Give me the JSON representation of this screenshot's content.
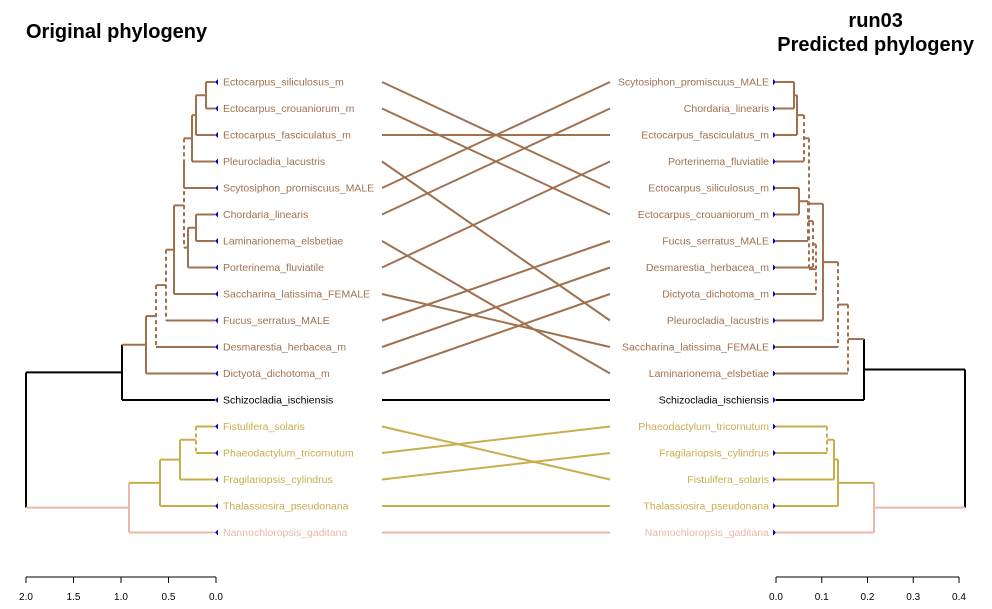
{
  "left_tree": {
    "title": "Original phylogeny",
    "tips": [
      {
        "label": "Ectocarpus_siliculosus_m",
        "group": "brown"
      },
      {
        "label": "Ectocarpus_crouaniorum_m",
        "group": "brown"
      },
      {
        "label": "Ectocarpus_fasciculatus_m",
        "group": "brown"
      },
      {
        "label": "Pleurocladia_lacustris",
        "group": "brown"
      },
      {
        "label": "Scytosiphon_promiscuus_MALE",
        "group": "brown"
      },
      {
        "label": "Chordaria_linearis",
        "group": "brown"
      },
      {
        "label": "Laminarionema_elsbetiae",
        "group": "brown"
      },
      {
        "label": "Porterinema_fluviatile",
        "group": "brown"
      },
      {
        "label": "Saccharina_latissima_FEMALE",
        "group": "brown"
      },
      {
        "label": "Fucus_serratus_MALE",
        "group": "brown"
      },
      {
        "label": "Desmarestia_herbacea_m",
        "group": "brown"
      },
      {
        "label": "Dictyota_dichotoma_m",
        "group": "brown"
      },
      {
        "label": "Schizocladia_ischiensis",
        "group": "black"
      },
      {
        "label": "Fistulifera_solaris",
        "group": "gold"
      },
      {
        "label": "Phaeodactylum_tricornutum",
        "group": "gold"
      },
      {
        "label": "Fragilariopsis_cylindrus",
        "group": "gold"
      },
      {
        "label": "Thalassiosira_pseudonana",
        "group": "gold"
      },
      {
        "label": "Nannochloropsis_gaditana",
        "group": "pink"
      }
    ],
    "axis": {
      "min": 0,
      "max": 2,
      "ticks": [
        "2.0",
        "1.5",
        "1.0",
        "0.5",
        "0.0"
      ]
    }
  },
  "right_tree": {
    "title_line1": "run03",
    "title_line2": "Predicted phylogeny",
    "tips": [
      {
        "label": "Scytosiphon_promiscuus_MALE",
        "group": "brown"
      },
      {
        "label": "Chordaria_linearis",
        "group": "brown"
      },
      {
        "label": "Ectocarpus_fasciculatus_m",
        "group": "brown"
      },
      {
        "label": "Porterinema_fluviatile",
        "group": "brown"
      },
      {
        "label": "Ectocarpus_siliculosus_m",
        "group": "brown"
      },
      {
        "label": "Ectocarpus_crouaniorum_m",
        "group": "brown"
      },
      {
        "label": "Fucus_serratus_MALE",
        "group": "brown"
      },
      {
        "label": "Desmarestia_herbacea_m",
        "group": "brown"
      },
      {
        "label": "Dictyota_dichotoma_m",
        "group": "brown"
      },
      {
        "label": "Pleurocladia_lacustris",
        "group": "brown"
      },
      {
        "label": "Saccharina_latissima_FEMALE",
        "group": "brown"
      },
      {
        "label": "Laminarionema_elsbetiae",
        "group": "brown"
      },
      {
        "label": "Schizocladia_ischiensis",
        "group": "black"
      },
      {
        "label": "Phaeodactylum_tricornutum",
        "group": "gold"
      },
      {
        "label": "Fragilariopsis_cylindrus",
        "group": "gold"
      },
      {
        "label": "Fistulifera_solaris",
        "group": "gold"
      },
      {
        "label": "Thalassiosira_pseudonana",
        "group": "gold"
      },
      {
        "label": "Nannochloropsis_gaditana",
        "group": "pink"
      }
    ],
    "axis": {
      "min": 0,
      "max": 0.4,
      "ticks": [
        "0.0",
        "0.1",
        "0.2",
        "0.3",
        "0.4"
      ]
    }
  },
  "colors": {
    "brown": "#a0714f",
    "black": "#000000",
    "gold": "#c9ad4e",
    "pink": "#e8b9a8",
    "tip_marker": "#0000cc",
    "axis": "#000000"
  }
}
